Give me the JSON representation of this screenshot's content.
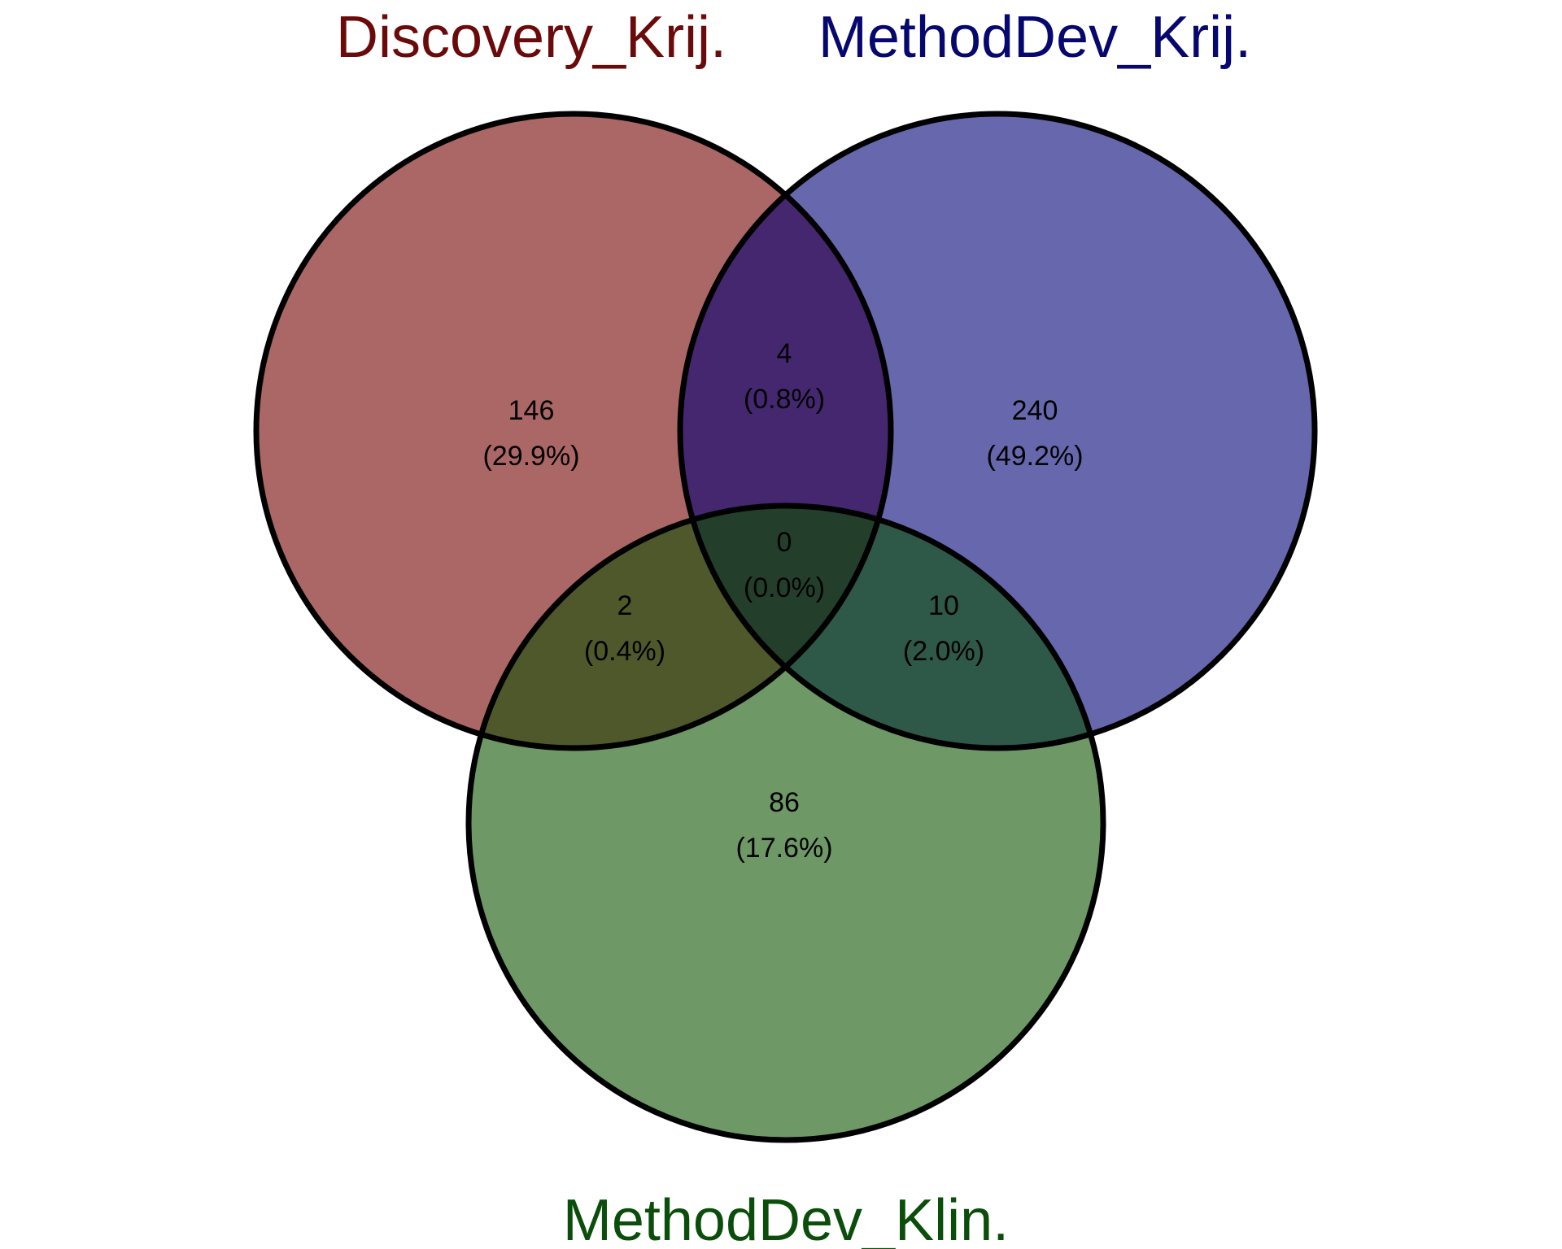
{
  "sets": [
    {
      "key": "A",
      "name": "Discovery_Krij.",
      "title_color": "#6b0a0a",
      "fill": "#ab6766"
    },
    {
      "key": "B",
      "name": "MethodDev_Krij.",
      "title_color": "#070770",
      "fill": "#6767ad"
    },
    {
      "key": "C",
      "name": "MethodDev_Klin.",
      "title_color": "#0b4d0b",
      "fill": "#6e9966"
    }
  ],
  "regions": [
    {
      "id": "A-only",
      "count": "146",
      "percent": "(29.9%)"
    },
    {
      "id": "B-only",
      "count": "240",
      "percent": "(49.2%)"
    },
    {
      "id": "C-only",
      "count": "86",
      "percent": "(17.6%)"
    },
    {
      "id": "AB-only",
      "count": "4",
      "percent": "(0.8%)"
    },
    {
      "id": "AC-only",
      "count": "2",
      "percent": "(0.4%)"
    },
    {
      "id": "BC-only",
      "count": "10",
      "percent": "(2.0%)"
    },
    {
      "id": "ABC",
      "count": "0",
      "percent": "(0.0%)"
    }
  ],
  "overlap_colors": {
    "AB": "#45276f",
    "AC": "#4e582a",
    "BC": "#2e5848",
    "ABC": "#233f2c"
  },
  "outline_color": "#000000"
}
